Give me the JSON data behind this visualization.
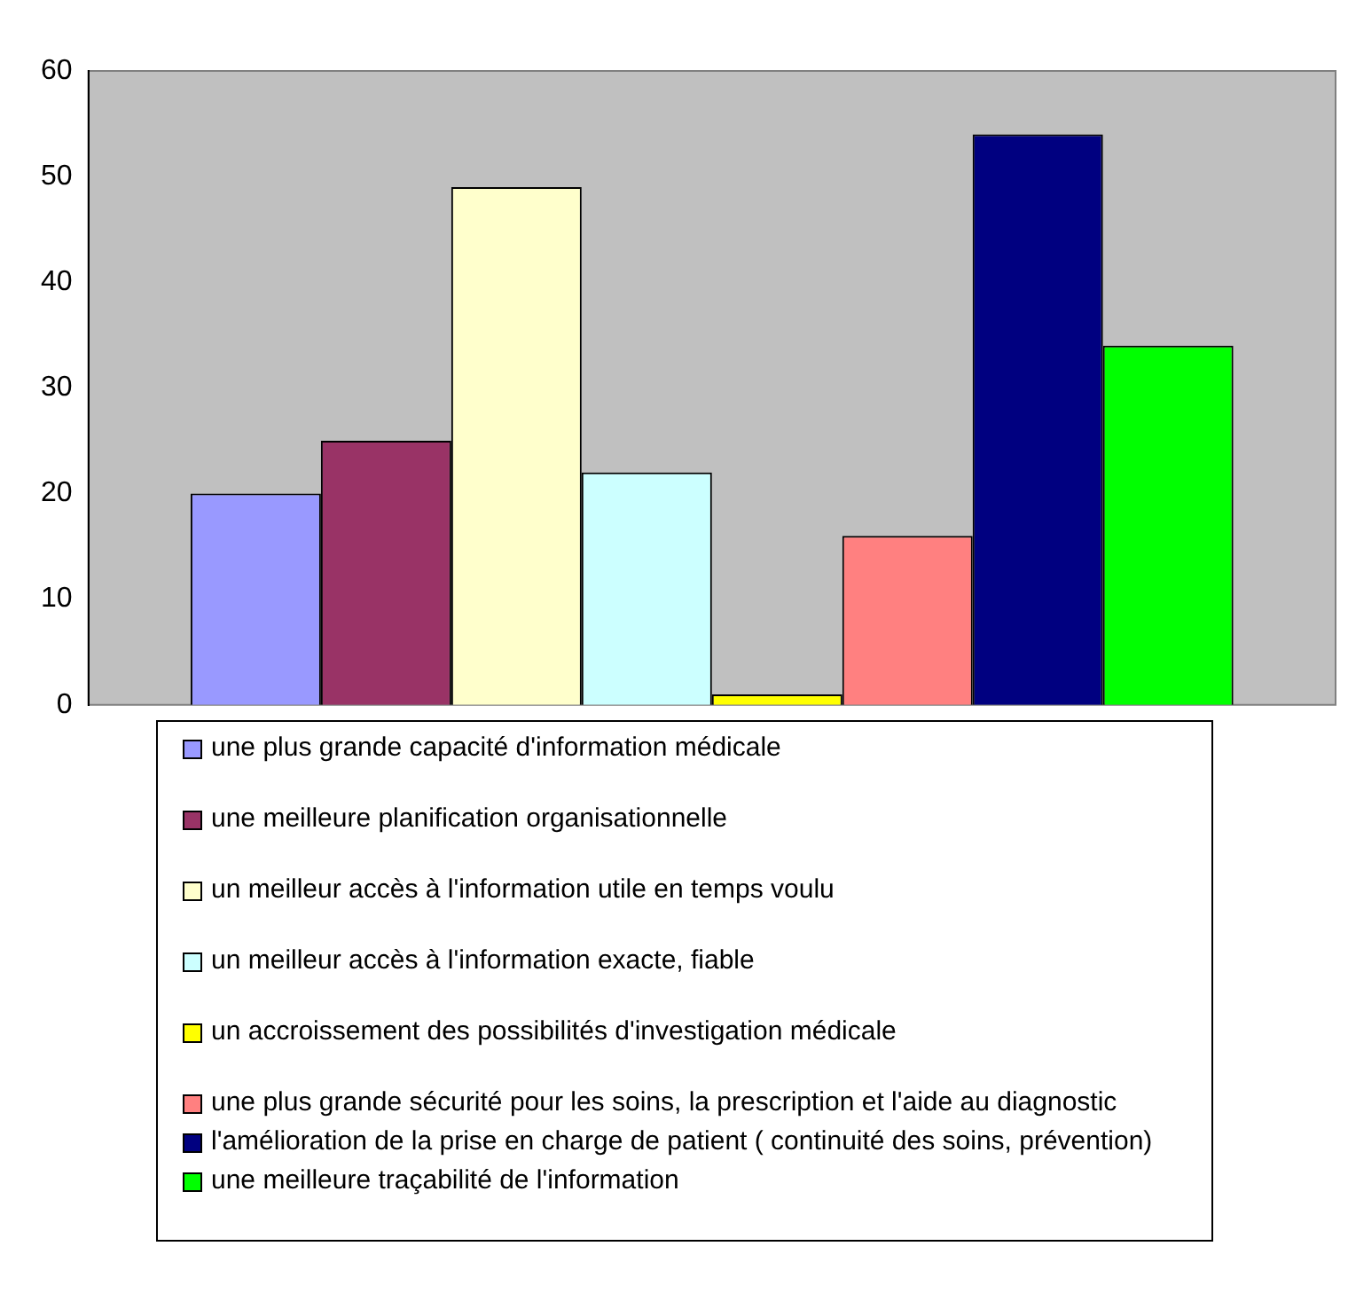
{
  "chart_data": {
    "type": "bar",
    "categories": [
      null
    ],
    "series": [
      {
        "name": "une plus grande capacité d'information médicale",
        "color": "#9999ff",
        "values": [
          20
        ]
      },
      {
        "name": "une meilleure planification organisationnelle",
        "color": "#993366",
        "values": [
          25
        ]
      },
      {
        "name": "un meilleur accès à l'information utile en temps voulu",
        "color": "#ffffcc",
        "values": [
          49
        ]
      },
      {
        "name": "un meilleur accès à l'information exacte, fiable",
        "color": "#ccffff",
        "values": [
          22
        ]
      },
      {
        "name": "un accroissement des possibilités d'investigation médicale",
        "color": "#ffff00",
        "values": [
          1
        ]
      },
      {
        "name": "une plus grande sécurité pour les soins, la prescription et l'aide au diagnostic",
        "color": "#ff8080",
        "values": [
          16
        ]
      },
      {
        "name": "l'amélioration de la prise en charge de patient ( continuité des soins, prévention)",
        "color": "#000080",
        "values": [
          54
        ]
      },
      {
        "name": "une meilleure traçabilité de l'information",
        "color": "#00ff00",
        "values": [
          34
        ]
      }
    ],
    "ylim": [
      0,
      60
    ],
    "yticks": [
      0,
      10,
      20,
      30,
      40,
      50,
      60
    ],
    "grid": false,
    "legend": "bottom"
  }
}
